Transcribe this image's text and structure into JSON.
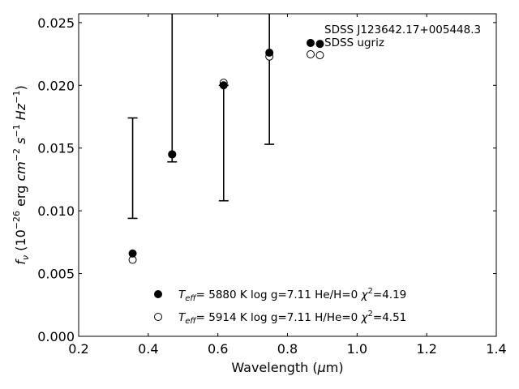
{
  "chart_data": {
    "type": "scatter",
    "xlabel": "Wavelength (μm)",
    "ylabel": "f_ν (10^-26 erg cm^-2 s^-1 Hz^-1)",
    "xlim": [
      0.2,
      1.4
    ],
    "ylim": [
      0.0,
      0.0257
    ],
    "xticks": [
      "0.2",
      "0.4",
      "0.6",
      "0.8",
      "1.0",
      "1.2",
      "1.4"
    ],
    "yticks": [
      "0.000",
      "0.005",
      "0.010",
      "0.015",
      "0.020",
      "0.025"
    ],
    "grid": false,
    "legend_top": {
      "placement": "top-right",
      "entries": [
        {
          "label": "SDSS J123642.17+005448.3",
          "marker": "filled-circle"
        },
        {
          "label": "SDSS ugriz",
          "marker": "open-circle"
        }
      ]
    },
    "legend_bottom": {
      "placement": "bottom-center",
      "entries": [
        {
          "marker": "filled-circle",
          "teff": "5880 K",
          "logg": "log g=7.11",
          "comp": "He/H=0",
          "chi2": "=4.19"
        },
        {
          "marker": "open-circle",
          "teff": "5914 K",
          "logg": "log g=7.11",
          "comp": "H/He=0",
          "chi2": "=4.51"
        }
      ]
    },
    "observed": {
      "name": "SDSS J123642.17+005448.3",
      "marker": "filled-circle",
      "x": [
        0.3551,
        0.4686,
        0.6166,
        0.748,
        0.8932
      ],
      "y": [
        0.0066,
        0.0145,
        0.02,
        0.0226,
        0.0233
      ]
    },
    "errorbars": [
      {
        "x": 0.3551,
        "lower": 0.0094,
        "upper": 0.0174
      },
      {
        "x": 0.4686,
        "lower": 0.0139,
        "upper": 0.031
      },
      {
        "x": 0.6166,
        "lower": 0.0108,
        "upper": 0.02
      },
      {
        "x": 0.748,
        "lower": 0.0153,
        "upper": 0.031
      }
    ],
    "model": {
      "name": "SDSS ugriz",
      "marker": "open-circle",
      "x": [
        0.3551,
        0.4686,
        0.6166,
        0.748,
        0.8932
      ],
      "y": [
        0.0061,
        0.0145,
        0.0202,
        0.0223,
        0.0224
      ]
    }
  }
}
